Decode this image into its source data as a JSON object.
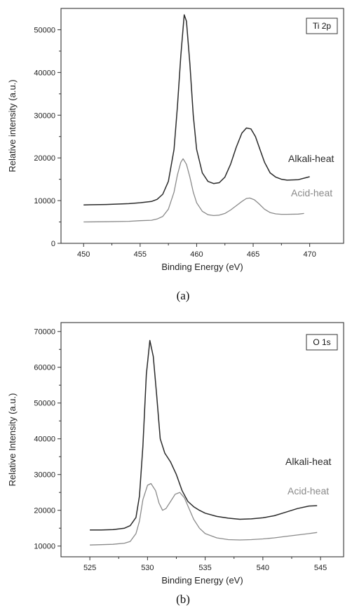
{
  "chart_data": [
    {
      "type": "line",
      "panel_label": "(a)",
      "legend_label": "Ti 2p",
      "xlabel": "Binding Energy (eV)",
      "ylabel": "Relative intensity (a.u.)",
      "xlim": [
        448,
        473
      ],
      "ylim": [
        0,
        55000
      ],
      "xticks": [
        450,
        455,
        460,
        465,
        470
      ],
      "yticks": [
        0,
        10000,
        20000,
        30000,
        40000,
        50000
      ],
      "grid": false,
      "series": [
        {
          "name": "Alkali-heat",
          "color": "#2a2a2a",
          "x": [
            450,
            452,
            454,
            455,
            456,
            456.5,
            457,
            457.5,
            458,
            458.3,
            458.6,
            458.9,
            459.1,
            459.4,
            459.7,
            460,
            460.5,
            461,
            461.5,
            462,
            462.5,
            463,
            463.5,
            464,
            464.4,
            464.8,
            465.2,
            465.6,
            466,
            466.5,
            467,
            467.5,
            468,
            469,
            470
          ],
          "y": [
            9000,
            9100,
            9300,
            9500,
            9800,
            10300,
            11500,
            14500,
            22000,
            32000,
            44000,
            53500,
            52000,
            42000,
            30000,
            22000,
            16500,
            14500,
            14000,
            14200,
            15500,
            18500,
            22500,
            25800,
            27000,
            26800,
            25000,
            22000,
            19000,
            16500,
            15500,
            15000,
            14800,
            14900,
            15600
          ]
        },
        {
          "name": "Acid-heat",
          "color": "#8a8a8a",
          "x": [
            450,
            452,
            454,
            455,
            456,
            456.5,
            457,
            457.5,
            458,
            458.3,
            458.6,
            458.8,
            459.1,
            459.4,
            459.7,
            460,
            460.5,
            461,
            461.5,
            462,
            462.5,
            463,
            463.5,
            464,
            464.4,
            464.7,
            465.1,
            465.5,
            466,
            466.5,
            467,
            467.5,
            468,
            469,
            469.5
          ],
          "y": [
            5000,
            5050,
            5150,
            5300,
            5400,
            5700,
            6300,
            8000,
            12000,
            16000,
            19000,
            19800,
            18500,
            15500,
            12000,
            9500,
            7500,
            6700,
            6500,
            6600,
            7000,
            7800,
            8800,
            9800,
            10500,
            10600,
            10200,
            9300,
            8000,
            7200,
            6900,
            6800,
            6800,
            6850,
            7000
          ]
        }
      ]
    },
    {
      "type": "line",
      "panel_label": "(b)",
      "legend_label": "O 1s",
      "xlabel": "Binding Energy (eV)",
      "ylabel": "Relative Intensity (a.u.)",
      "xlim": [
        522.5,
        547
      ],
      "ylim": [
        7000,
        72500
      ],
      "xticks": [
        525,
        530,
        535,
        540,
        545
      ],
      "yticks": [
        10000,
        20000,
        30000,
        40000,
        50000,
        60000,
        70000
      ],
      "grid": false,
      "series": [
        {
          "name": "Alkali-heat",
          "color": "#2a2a2a",
          "x": [
            525,
            526,
            527,
            528,
            528.5,
            529,
            529.3,
            529.6,
            529.9,
            530.2,
            530.5,
            530.8,
            531.1,
            531.5,
            532,
            532.5,
            533,
            533.5,
            534,
            534.5,
            535,
            536,
            537,
            538,
            539,
            540,
            541,
            542,
            543,
            544,
            544.7
          ],
          "y": [
            14500,
            14500,
            14600,
            15000,
            15700,
            18000,
            24000,
            38000,
            58000,
            67500,
            63000,
            52000,
            40000,
            36000,
            33500,
            30000,
            25500,
            22500,
            21000,
            20000,
            19200,
            18300,
            17800,
            17500,
            17600,
            17900,
            18500,
            19500,
            20500,
            21200,
            21300
          ]
        },
        {
          "name": "Acid-heat",
          "color": "#8a8a8a",
          "x": [
            525,
            526,
            527,
            528,
            528.5,
            529,
            529.3,
            529.6,
            530,
            530.3,
            530.7,
            531,
            531.3,
            531.6,
            532,
            532.4,
            532.8,
            533.2,
            533.6,
            534,
            534.5,
            535,
            536,
            537,
            538,
            539,
            540,
            541,
            542,
            543,
            544,
            544.7
          ],
          "y": [
            10300,
            10400,
            10500,
            10800,
            11300,
            13500,
            17000,
            23000,
            27000,
            27500,
            25500,
            22000,
            20000,
            20500,
            22500,
            24500,
            25000,
            23500,
            20500,
            17500,
            15000,
            13500,
            12300,
            11800,
            11700,
            11800,
            12000,
            12300,
            12700,
            13100,
            13500,
            13800
          ]
        }
      ]
    }
  ]
}
